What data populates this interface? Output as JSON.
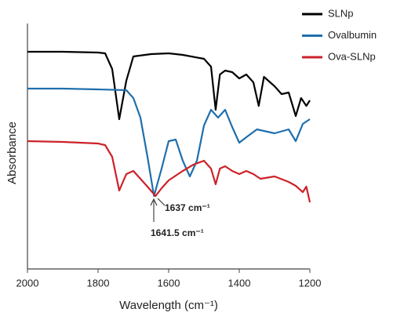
{
  "chart_data": {
    "type": "line",
    "x_label": "Wavelength (cm⁻¹)",
    "y_label": "Absorbance",
    "xlim": [
      2000,
      1200
    ],
    "xticks": [
      2000,
      1800,
      1600,
      1400,
      1200
    ],
    "ylim": [
      0,
      313
    ],
    "legend": "top-right",
    "series": [
      {
        "name": "SLNp",
        "color": "#000000",
        "x": [
          2000,
          1900,
          1800,
          1780,
          1760,
          1740,
          1720,
          1700,
          1650,
          1600,
          1560,
          1500,
          1480,
          1467,
          1455,
          1440,
          1420,
          1400,
          1380,
          1360,
          1345,
          1330,
          1300,
          1280,
          1260,
          1240,
          1225,
          1210,
          1200
        ],
        "values": [
          277,
          277,
          276,
          275,
          255,
          191,
          240,
          271,
          274,
          275,
          273,
          268,
          258,
          203,
          248,
          253,
          251,
          243,
          248,
          238,
          208,
          245,
          233,
          223,
          225,
          195,
          218,
          208,
          215
        ]
      },
      {
        "name": "Ovalbumin",
        "color": "#1f6fad",
        "x": [
          2000,
          1900,
          1800,
          1720,
          1700,
          1680,
          1660,
          1641.5,
          1620,
          1600,
          1580,
          1560,
          1540,
          1520,
          1500,
          1480,
          1460,
          1440,
          1420,
          1400,
          1380,
          1350,
          1300,
          1260,
          1240,
          1220,
          1200
        ],
        "values": [
          230,
          230,
          229,
          228,
          218,
          193,
          143,
          93,
          128,
          163,
          165,
          138,
          118,
          138,
          183,
          203,
          193,
          203,
          181,
          161,
          168,
          178,
          173,
          178,
          163,
          185,
          191
        ]
      },
      {
        "name": "Ova-SLNp",
        "color": "#cc2229",
        "x": [
          2000,
          1900,
          1800,
          1780,
          1760,
          1740,
          1720,
          1700,
          1680,
          1660,
          1637,
          1620,
          1600,
          1560,
          1530,
          1500,
          1480,
          1467,
          1455,
          1440,
          1420,
          1400,
          1380,
          1360,
          1340,
          1300,
          1260,
          1240,
          1220,
          1210,
          1200
        ],
        "values": [
          163,
          162,
          160,
          158,
          143,
          100,
          121,
          125,
          115,
          105,
          93,
          103,
          113,
          125,
          133,
          138,
          128,
          108,
          128,
          131,
          125,
          121,
          125,
          121,
          115,
          118,
          111,
          106,
          98,
          105,
          85
        ]
      }
    ],
    "annotations": [
      "1637 cm⁻¹",
      "1641.5 cm⁻¹"
    ]
  }
}
